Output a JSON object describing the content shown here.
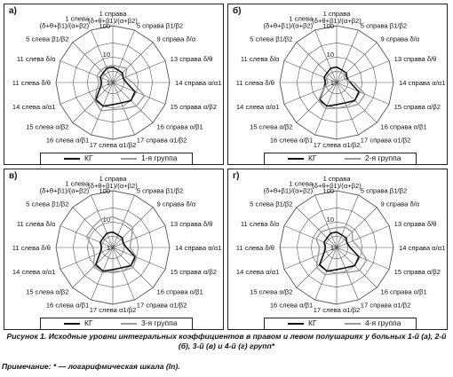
{
  "caption": "Рисунок 1. Исходные уровни интегральных коэффициентов в правом и левом полушариях у больных 1-й (а), 2-й (б), 3-й (в) и 4-й (г) групп*",
  "note": "Примечание: * — логарифмическая шкала (ln).",
  "colors": {
    "kg": "#111111",
    "group": "#9a9a9a",
    "grid": "#555555"
  },
  "chart_data": [
    {
      "type": "radar",
      "panel": "а)",
      "log_scale": true,
      "axis_ticks": [
        "1",
        "10",
        "100"
      ],
      "categories": [
        "1 справа (δ+θ+β1)/(α+β2)",
        "5 справа β1/β2",
        "9 справа δ/α",
        "13 справа δ/θ",
        "14 справа α/α1",
        "15 справа α/β2",
        "16 справа α/β1",
        "17 справа α1/β2",
        "17 слева α1/β2",
        "16 слева α/β1",
        "15 слева α/β2",
        "14 слева α/α1",
        "11 слева δ/θ",
        "11 слева δ/α",
        "5 слева β1/β2",
        "1 слева (δ+θ+β1)/(α+β2)"
      ],
      "series": [
        {
          "name": "КГ",
          "values": [
            3.5,
            3,
            3,
            2.5,
            3,
            7,
            8,
            6,
            6,
            8,
            7,
            3,
            2.5,
            3,
            3,
            3.5
          ]
        },
        {
          "name": "1-я группа",
          "values": [
            4,
            4,
            5,
            3,
            5,
            16,
            15,
            10,
            9,
            12,
            8,
            4,
            3,
            4,
            4,
            4
          ]
        }
      ]
    },
    {
      "type": "radar",
      "panel": "б)",
      "log_scale": true,
      "axis_ticks": [
        "1",
        "10",
        "100"
      ],
      "categories": [
        "1 справа (δ+θ+β1)/(α+β2)",
        "5 справа β1/β2",
        "9 справа δ/α",
        "13 справа δ/θ",
        "14 справа α/α1",
        "15 справа α/β2",
        "16 справа α/β1",
        "17 справа α1/β2",
        "17 слева α1/β2",
        "16 слева α/β1",
        "15 слева α/β2",
        "14 слева α/α1",
        "11 слева δ/θ",
        "11 слева δ/α",
        "5 слева β1/β2",
        "1 слева (δ+θ+β1)/(α+β2)"
      ],
      "series": [
        {
          "name": "КГ",
          "values": [
            3.5,
            3,
            3,
            2.5,
            3,
            7,
            8,
            6,
            6,
            8,
            7,
            3,
            2.5,
            3,
            3,
            3.5
          ]
        },
        {
          "name": "2-я группа",
          "values": [
            2.5,
            2.5,
            2.5,
            2,
            4,
            12,
            12,
            9,
            8,
            10,
            8,
            3,
            2,
            2.5,
            2.5,
            2.5
          ]
        }
      ]
    },
    {
      "type": "radar",
      "panel": "в)",
      "log_scale": true,
      "axis_ticks": [
        "1",
        "10",
        "100"
      ],
      "categories": [
        "1 справа (δ+θ+β1)/(α+β2)",
        "5 справа β1/β2",
        "9 справа δ/α",
        "13 справа δ/θ",
        "14 справа α/α1",
        "15 справа α/β2",
        "16 справа α/β1",
        "17 справа α1/β2",
        "17 слева α1/β2",
        "16 слева α/β1",
        "15 слева α/β2",
        "14 слева α/α1",
        "11 слева δ/θ",
        "11 слева δ/α",
        "5 слева β1/β2",
        "1 слева (δ+θ+β1)/(α+β2)"
      ],
      "series": [
        {
          "name": "КГ",
          "values": [
            3.5,
            3,
            3,
            2.5,
            3,
            7,
            8,
            6,
            6,
            8,
            7,
            3,
            2.5,
            3,
            3,
            3.5
          ]
        },
        {
          "name": "3-я группа",
          "values": [
            12,
            10,
            10,
            5,
            4,
            8,
            10,
            8,
            7,
            9,
            9,
            5,
            5,
            10,
            10,
            12
          ]
        }
      ]
    },
    {
      "type": "radar",
      "panel": "г)",
      "log_scale": true,
      "axis_ticks": [
        "1",
        "10",
        "100"
      ],
      "categories": [
        "1 справа (δ+θ+β1)/(α+β2)",
        "5 справа β1/β2",
        "9 справа δ/α",
        "13 справа δ/θ",
        "14 справа α/α1",
        "15 справа α/β2",
        "16 справа α/β1",
        "17 справа α1/β2",
        "17 слева α1/β2",
        "16 слева α/β1",
        "15 слева α/β2",
        "14 слева α/α1",
        "11 слева δ/θ",
        "11 слева δ/α",
        "5 слева β1/β2",
        "1 слева (δ+θ+β1)/(α+β2)"
      ],
      "series": [
        {
          "name": "КГ",
          "values": [
            3.5,
            3,
            3,
            2.5,
            3,
            7,
            8,
            6,
            6,
            8,
            7,
            3,
            2.5,
            3,
            3,
            3.5
          ]
        },
        {
          "name": "4-я группа",
          "values": [
            5,
            6,
            6,
            4,
            6,
            14,
            14,
            9,
            8,
            11,
            10,
            5,
            4,
            6,
            6,
            5
          ]
        }
      ]
    }
  ]
}
